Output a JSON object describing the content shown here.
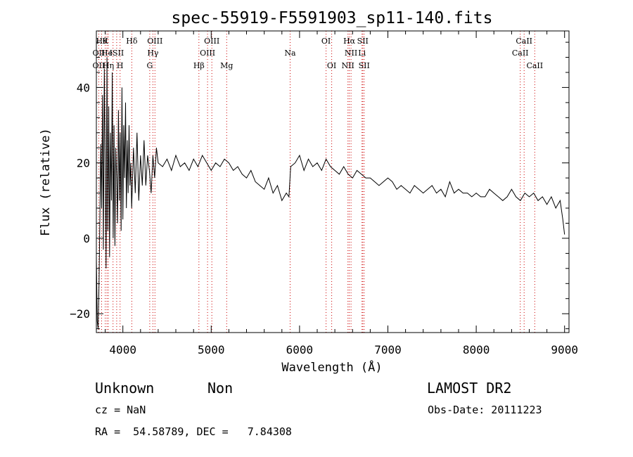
{
  "chart_data": {
    "type": "line",
    "title": "spec-55919-F5591903_sp11-140.fits",
    "xlabel": "Wavelength (Å)",
    "ylabel": "Flux (relative)",
    "xlim": [
      3700,
      9050
    ],
    "ylim": [
      -25,
      55
    ],
    "xticks": [
      4000,
      5000,
      6000,
      7000,
      8000,
      9000
    ],
    "yticks": [
      -20,
      0,
      20,
      40
    ],
    "grid": false,
    "series": [
      {
        "x": [
          3700,
          3710,
          3720,
          3730,
          3740,
          3750,
          3760,
          3770,
          3780,
          3790,
          3800,
          3810,
          3820,
          3830,
          3840,
          3850,
          3860,
          3870,
          3880,
          3890,
          3900,
          3910,
          3920,
          3930,
          3940,
          3950,
          3960,
          3970,
          3980,
          3990,
          4000,
          4010,
          4020,
          4030,
          4040,
          4050,
          4060,
          4070,
          4080,
          4090,
          4100,
          4120,
          4140,
          4160,
          4180,
          4200,
          4220,
          4240,
          4260,
          4280,
          4300,
          4320,
          4340,
          4360,
          4380,
          4400,
          4450,
          4500,
          4550,
          4600,
          4650,
          4700,
          4750,
          4800,
          4850,
          4900,
          4950,
          5000,
          5050,
          5100,
          5150,
          5200,
          5250,
          5300,
          5350,
          5400,
          5450,
          5500,
          5550,
          5600,
          5650,
          5700,
          5750,
          5800,
          5850,
          5880,
          5900,
          5950,
          6000,
          6050,
          6100,
          6150,
          6200,
          6250,
          6300,
          6350,
          6400,
          6450,
          6500,
          6550,
          6600,
          6650,
          6700,
          6750,
          6800,
          6850,
          6900,
          6950,
          7000,
          7050,
          7100,
          7150,
          7200,
          7250,
          7300,
          7350,
          7400,
          7450,
          7500,
          7550,
          7600,
          7650,
          7700,
          7750,
          7800,
          7850,
          7900,
          7950,
          8000,
          8050,
          8100,
          8150,
          8200,
          8250,
          8300,
          8350,
          8400,
          8450,
          8500,
          8550,
          8600,
          8650,
          8700,
          8750,
          8800,
          8850,
          8900,
          8950,
          8980,
          9000
        ],
        "y": [
          -5,
          -22,
          -24,
          -12,
          5,
          25,
          8,
          38,
          -3,
          45,
          20,
          -8,
          48,
          2,
          35,
          -5,
          28,
          10,
          44,
          0,
          30,
          -2,
          24,
          16,
          4,
          34,
          10,
          28,
          2,
          40,
          5,
          30,
          16,
          36,
          8,
          26,
          12,
          30,
          14,
          20,
          8,
          24,
          12,
          28,
          10,
          22,
          14,
          26,
          14,
          22,
          18,
          12,
          22,
          16,
          24,
          20,
          19,
          21,
          18,
          22,
          19,
          20,
          18,
          21,
          19,
          22,
          20,
          18,
          20,
          19,
          21,
          20,
          18,
          19,
          17,
          16,
          18,
          15,
          14,
          13,
          16,
          12,
          14,
          10,
          12,
          11,
          19,
          20,
          22,
          18,
          21,
          19,
          20,
          18,
          21,
          19,
          18,
          17,
          19,
          17,
          16,
          18,
          17,
          16,
          16,
          15,
          14,
          15,
          16,
          15,
          13,
          14,
          13,
          12,
          14,
          13,
          12,
          13,
          14,
          12,
          13,
          11,
          15,
          12,
          13,
          12,
          12,
          11,
          12,
          11,
          11,
          13,
          12,
          11,
          10,
          11,
          13,
          11,
          10,
          12,
          11,
          12,
          10,
          11,
          9,
          11,
          8,
          10,
          5,
          1
        ]
      }
    ],
    "line_labels": [
      {
        "x": 3760,
        "text": "Hθ",
        "row": 0
      },
      {
        "x": 3800,
        "text": "K",
        "row": 0
      },
      {
        "x": 4101,
        "text": "Hδ",
        "row": 0
      },
      {
        "x": 4363,
        "text": "OIII",
        "row": 0
      },
      {
        "x": 5007,
        "text": "OIII",
        "row": 0
      },
      {
        "x": 6300,
        "text": "OI",
        "row": 0
      },
      {
        "x": 6563,
        "text": "Hα",
        "row": 0
      },
      {
        "x": 6716,
        "text": "SII",
        "row": 0
      },
      {
        "x": 8542,
        "text": "CaII",
        "row": 0
      },
      {
        "x": 3727,
        "text": "OII",
        "row": 1
      },
      {
        "x": 3820,
        "text": "He",
        "row": 1
      },
      {
        "x": 3930,
        "text": "ISII",
        "row": 1
      },
      {
        "x": 4340,
        "text": "Hγ",
        "row": 1
      },
      {
        "x": 4959,
        "text": "OIII",
        "row": 1
      },
      {
        "x": 6583,
        "text": "NII",
        "row": 1
      },
      {
        "x": 6707,
        "text": "Li",
        "row": 1
      },
      {
        "x": 8498,
        "text": "CaII",
        "row": 1
      },
      {
        "x": 3727,
        "text": "OII",
        "row": 2
      },
      {
        "x": 3835,
        "text": "Hη",
        "row": 2
      },
      {
        "x": 3968,
        "text": "H",
        "row": 2
      },
      {
        "x": 4304,
        "text": "G",
        "row": 2
      },
      {
        "x": 4861,
        "text": "Hβ",
        "row": 2
      },
      {
        "x": 5175,
        "text": "Mg",
        "row": 2
      },
      {
        "x": 5893,
        "text": "Na",
        "row": 1
      },
      {
        "x": 6364,
        "text": "OI",
        "row": 2
      },
      {
        "x": 6548,
        "text": "NII",
        "row": 2
      },
      {
        "x": 6731,
        "text": "SII",
        "row": 2
      },
      {
        "x": 8662,
        "text": "CaII",
        "row": 2
      }
    ],
    "marker_lines": [
      3727,
      3760,
      3800,
      3820,
      3835,
      3889,
      3930,
      3968,
      4101,
      4304,
      4340,
      4363,
      4861,
      4959,
      5007,
      5175,
      5893,
      6300,
      6364,
      6548,
      6563,
      6583,
      6707,
      6716,
      6731,
      8498,
      8542,
      8662
    ],
    "marker_color": "#cc0000"
  },
  "footer": {
    "class_label": "Unknown",
    "subclass_label": "Non",
    "survey": "LAMOST DR2",
    "cz": "cz = NaN",
    "obs_date": "Obs-Date: 20111223",
    "coords": "RA =  54.58789, DEC =   7.84308"
  }
}
